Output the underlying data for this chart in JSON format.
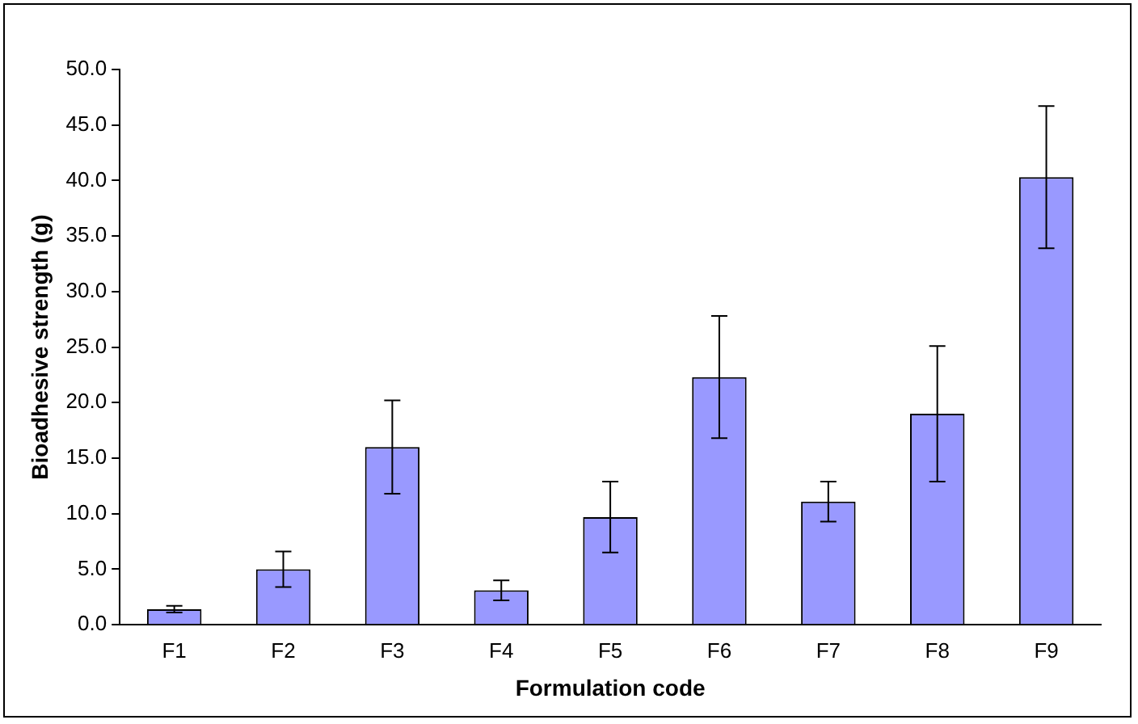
{
  "chart_data": {
    "type": "bar",
    "xlabel": "Formulation code",
    "ylabel": "Bioadhesive strength (g)",
    "categories": [
      "F1",
      "F2",
      "F3",
      "F4",
      "F5",
      "F6",
      "F7",
      "F8",
      "F9"
    ],
    "values": [
      1.4,
      5.0,
      16.0,
      3.1,
      9.7,
      22.3,
      11.1,
      19.0,
      40.3
    ],
    "errors": [
      0.3,
      1.6,
      4.2,
      0.9,
      3.2,
      5.5,
      1.8,
      6.1,
      6.4
    ],
    "color": "#9999ff",
    "ylim": [
      0,
      50
    ],
    "yticks": [
      {
        "value": 0,
        "label": "0.0"
      },
      {
        "value": 5,
        "label": "5.0"
      },
      {
        "value": 10,
        "label": "10.0"
      },
      {
        "value": 15,
        "label": "15.0"
      },
      {
        "value": 20,
        "label": "20.0"
      },
      {
        "value": 25,
        "label": "25.0"
      },
      {
        "value": 30,
        "label": "30.0"
      },
      {
        "value": 35,
        "label": "35.0"
      },
      {
        "value": 40,
        "label": "40.0"
      },
      {
        "value": 45,
        "label": "45.0"
      },
      {
        "value": 50,
        "label": "50.0"
      }
    ],
    "grid": false,
    "legend": false
  }
}
